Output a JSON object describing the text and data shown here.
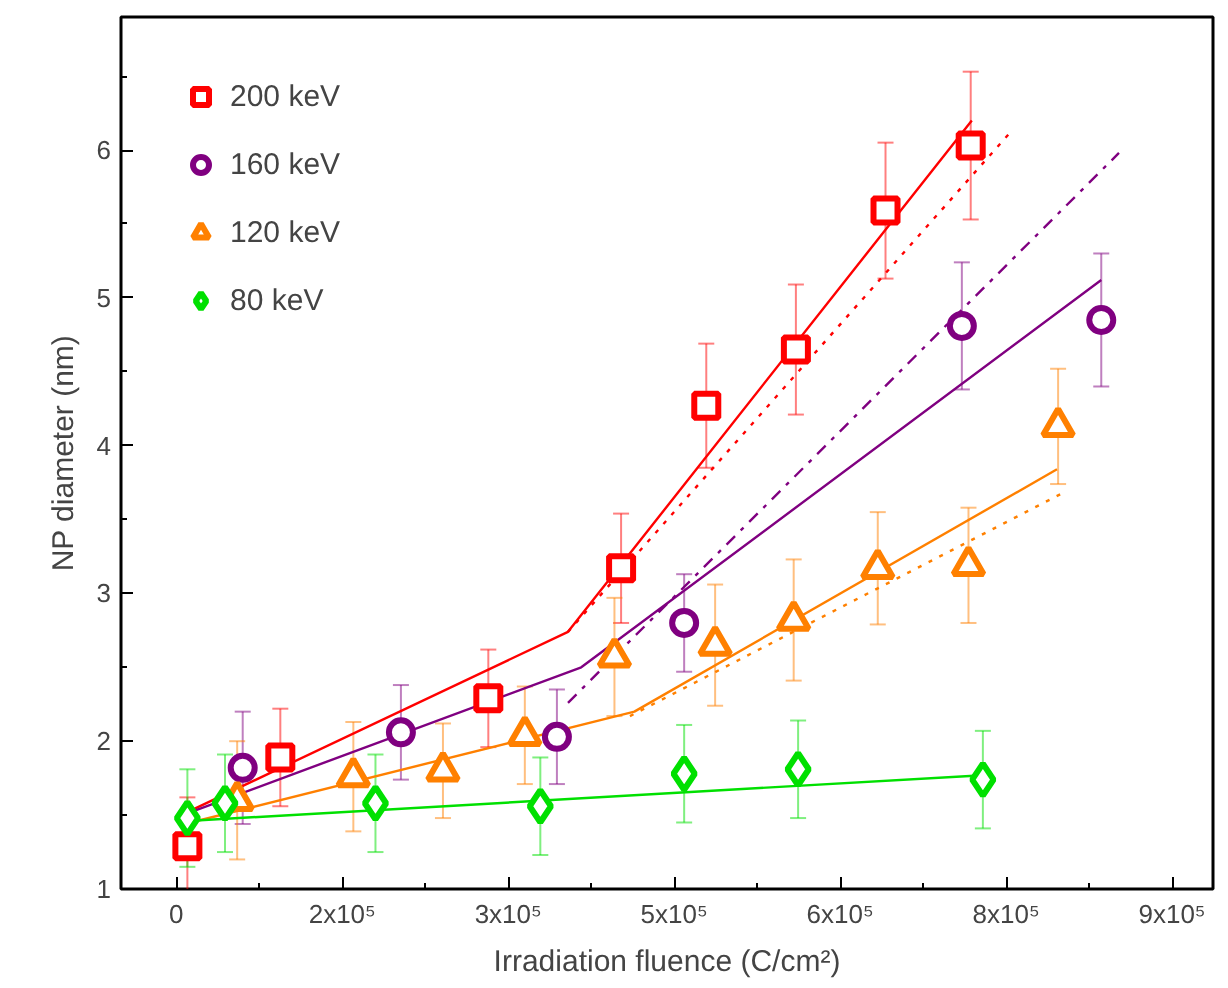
{
  "chart_data": {
    "type": "scatter",
    "xlabel": "Irradiation fluence (C/cm²)",
    "ylabel": "NP diameter (nm)",
    "xlim": [
      -50000,
      937000
    ],
    "ylim": [
      1,
      6.9
    ],
    "xticks": [
      0,
      {
        "value": 75000,
        "label": null
      },
      {
        "value": 150000,
        "label": "2x10⁵"
      },
      {
        "value": 225000,
        "label": null
      },
      {
        "value": 300000,
        "label": "3x10⁵"
      },
      {
        "value": 375000,
        "label": null
      },
      {
        "value": 450000,
        "label": "5x10⁵"
      },
      {
        "value": 525000,
        "label": null
      },
      {
        "value": 600000,
        "label": "6x10⁵"
      },
      {
        "value": 675000,
        "label": null
      },
      {
        "value": 750000,
        "label": "8x10⁵"
      },
      {
        "value": 825000,
        "label": null
      },
      {
        "value": 900000,
        "label": "9x10⁵"
      }
    ],
    "yticks": [
      1,
      {
        "value": 1.5,
        "label": null
      },
      2,
      {
        "value": 2.5,
        "label": null
      },
      3,
      {
        "value": 3.5,
        "label": null
      },
      4,
      {
        "value": 4.5,
        "label": null
      },
      5,
      {
        "value": 5.5,
        "label": null
      },
      6,
      {
        "value": 6.5,
        "label": null
      }
    ],
    "grid": false,
    "legend": "top left",
    "series": [
      {
        "name": "200 keV",
        "color": "#ff0000",
        "marker": "square",
        "x": [
          10000,
          94000,
          282000,
          402000,
          479000,
          560000,
          641000,
          718000
        ],
        "values": [
          1.29,
          1.89,
          2.29,
          3.17,
          4.27,
          4.65,
          5.59,
          6.03
        ],
        "errors": [
          0.33,
          0.33,
          0.33,
          0.37,
          0.42,
          0.44,
          0.46,
          0.5
        ]
      },
      {
        "name": "160 keV",
        "color": "#800080",
        "marker": "circle",
        "x": [
          60000,
          203000,
          344000,
          459000,
          710000,
          836000
        ],
        "values": [
          1.82,
          2.06,
          2.03,
          2.8,
          4.81,
          4.85
        ],
        "errors": [
          0.38,
          0.32,
          0.32,
          0.33,
          0.43,
          0.45
        ]
      },
      {
        "name": "120 keV",
        "color": "#ff8000",
        "marker": "triangle",
        "x": [
          55000,
          160000,
          241000,
          315000,
          396000,
          487000,
          558000,
          634000,
          716000,
          797000
        ],
        "values": [
          1.6,
          1.76,
          1.8,
          2.04,
          2.57,
          2.65,
          2.82,
          3.17,
          3.19,
          4.13
        ],
        "errors": [
          0.4,
          0.37,
          0.32,
          0.33,
          0.4,
          0.41,
          0.41,
          0.38,
          0.39,
          0.39
        ]
      },
      {
        "name": "80 keV",
        "color": "#00e000",
        "marker": "diamond",
        "x": [
          10000,
          44000,
          180000,
          329000,
          459000,
          562000,
          729000
        ],
        "values": [
          1.48,
          1.58,
          1.58,
          1.56,
          1.78,
          1.81,
          1.74
        ],
        "errors": [
          0.33,
          0.33,
          0.33,
          0.33,
          0.33,
          0.33,
          0.33
        ]
      },
      {
        "type": "line",
        "color": "#ff0000",
        "line_style": "solid",
        "x": [
          10000,
          354000,
          719000
        ],
        "values": [
          1.52,
          2.74,
          6.2
        ]
      },
      {
        "type": "line",
        "color": "#ff0000",
        "line_style": "dotted",
        "x": [
          354000,
          755000
        ],
        "values": [
          2.74,
          6.13
        ]
      },
      {
        "type": "line",
        "color": "#800080",
        "line_style": "solid",
        "x": [
          13000,
          366000,
          836000
        ],
        "values": [
          1.52,
          2.5,
          5.12
        ]
      },
      {
        "type": "line",
        "color": "#800080",
        "line_style": "dashdot",
        "x": [
          354000,
          852000
        ],
        "values": [
          2.26,
          5.98
        ]
      },
      {
        "type": "line",
        "color": "#ff8000",
        "line_style": "solid",
        "x": [
          13000,
          414000,
          796000
        ],
        "values": [
          1.45,
          2.2,
          3.84
        ]
      },
      {
        "type": "line",
        "color": "#ff8000",
        "line_style": "dotted",
        "x": [
          410000,
          804000
        ],
        "values": [
          2.17,
          3.69
        ]
      },
      {
        "type": "line",
        "color": "#00e000",
        "line_style": "solid",
        "x": [
          10000,
          729000
        ],
        "values": [
          1.46,
          1.77
        ]
      }
    ]
  }
}
